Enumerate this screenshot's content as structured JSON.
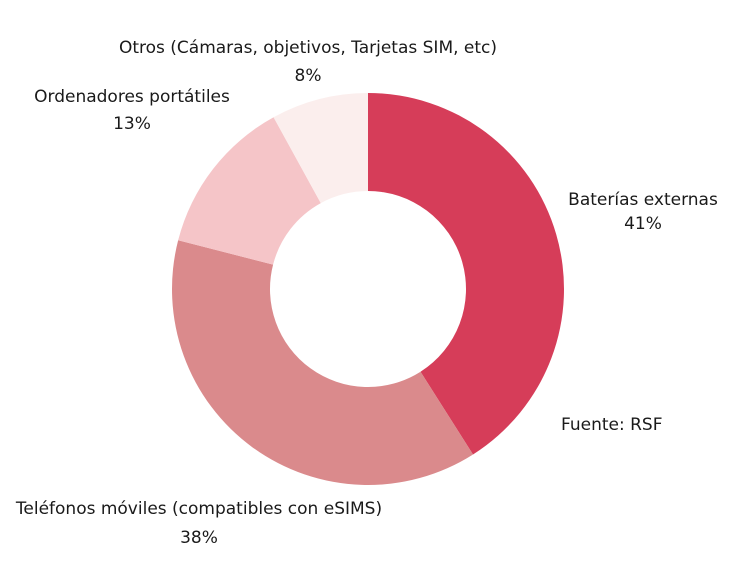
{
  "chart_data": {
    "type": "pie",
    "variant": "donut",
    "slices": [
      {
        "label": "Baterías externas",
        "value": 41,
        "value_label": "41%",
        "color": "#d63d59"
      },
      {
        "label": "Teléfonos móviles (compatibles con eSIMS)",
        "value": 38,
        "value_label": "38%",
        "color": "#da8a8c"
      },
      {
        "label": "Ordenadores portátiles",
        "value": 13,
        "value_label": "13%",
        "color": "#f5c5c8"
      },
      {
        "label": "Otros (Cámaras, objetivos, Tarjetas SIM, etc)",
        "value": 8,
        "value_label": "8%",
        "color": "#fbeeed"
      }
    ],
    "start": "top, clockwise",
    "legend": "none (labels placed beside slices)"
  },
  "source_note": "Fuente: RSF"
}
